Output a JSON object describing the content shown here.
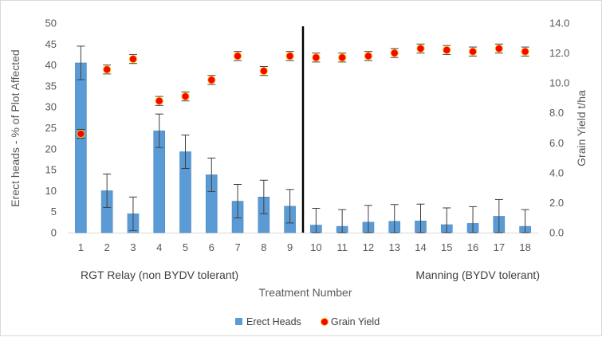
{
  "chart_data": {
    "type": "bar",
    "x_title": "Treatment Number",
    "y_left_title": "Erect heads - % of Plot Affected",
    "y_right_title": "Grain Yield t/ha",
    "ylim_left": [
      0,
      50
    ],
    "ylim_right": [
      0,
      14
    ],
    "y_left_ticks": [
      "0",
      "5",
      "10",
      "15",
      "20",
      "25",
      "30",
      "35",
      "40",
      "45",
      "50"
    ],
    "y_right_ticks": [
      "0.0",
      "2.0",
      "4.0",
      "6.0",
      "8.0",
      "10.0",
      "12.0",
      "14.0"
    ],
    "categories": [
      "1",
      "2",
      "3",
      "4",
      "5",
      "6",
      "7",
      "8",
      "9",
      "10",
      "11",
      "12",
      "13",
      "14",
      "15",
      "16",
      "17",
      "18"
    ],
    "group_labels": {
      "left": "RGT Relay (non BYDV tolerant)",
      "right": "Manning (BYDV tolerant)"
    },
    "divider_after_category": "9",
    "grid": false,
    "legend_position": "bottom",
    "series": [
      {
        "name": "Erect Heads",
        "type": "bar",
        "axis": "left",
        "color": "#5b9bd5",
        "values": [
          40.5,
          10.0,
          4.5,
          24.3,
          19.3,
          13.8,
          7.5,
          8.5,
          6.3,
          1.8,
          1.5,
          2.5,
          2.7,
          2.8,
          1.9,
          2.2,
          3.9,
          1.5
        ],
        "error": [
          4.0,
          4.0,
          4.0,
          4.0,
          4.0,
          4.0,
          4.0,
          4.0,
          4.0,
          4.0,
          4.0,
          4.0,
          4.0,
          4.0,
          4.0,
          4.0,
          4.0,
          4.0
        ]
      },
      {
        "name": "Grain Yield",
        "type": "scatter",
        "axis": "right",
        "color": "#ff0000",
        "values": [
          6.6,
          10.9,
          11.6,
          8.8,
          9.1,
          10.2,
          11.8,
          10.8,
          11.8,
          11.7,
          11.7,
          11.8,
          12.0,
          12.3,
          12.2,
          12.1,
          12.3,
          12.1
        ],
        "error": [
          0.3,
          0.3,
          0.3,
          0.3,
          0.3,
          0.3,
          0.3,
          0.3,
          0.3,
          0.3,
          0.3,
          0.3,
          0.3,
          0.3,
          0.3,
          0.3,
          0.3,
          0.3
        ]
      }
    ]
  }
}
